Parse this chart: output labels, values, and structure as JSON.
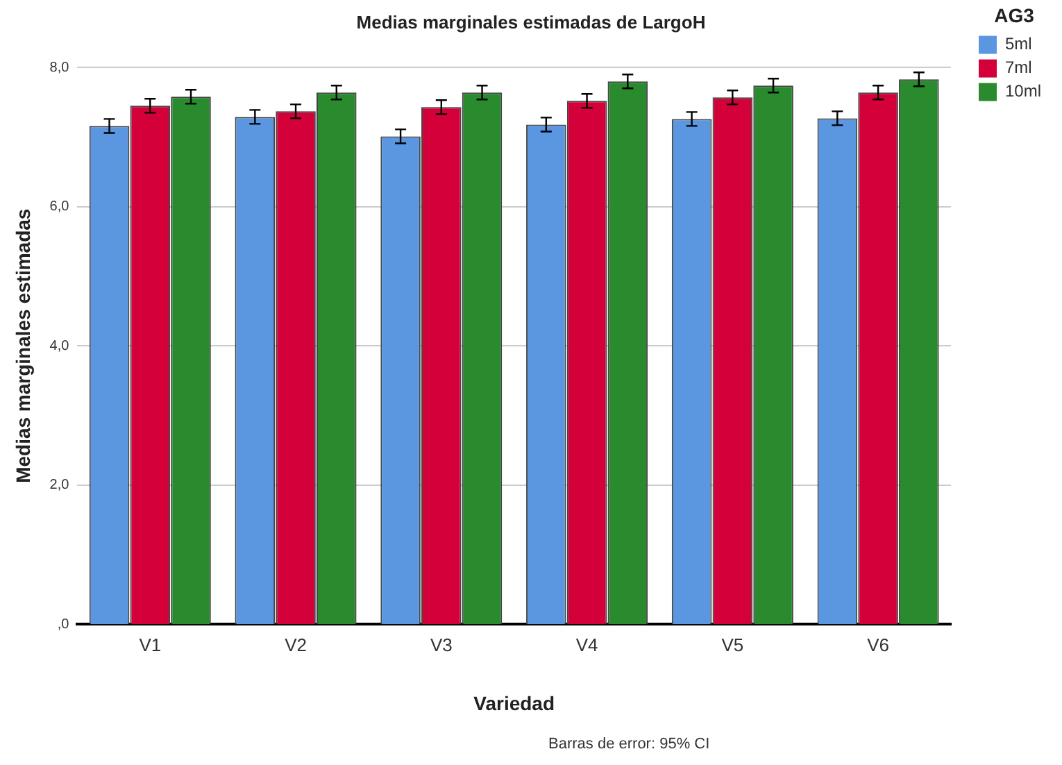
{
  "chart_data": {
    "type": "bar",
    "title": "Medias marginales estimadas de LargoH",
    "xlabel": "Variedad",
    "ylabel": "Medias marginales estimadas",
    "legend_title": "AG3",
    "categories": [
      "V1",
      "V2",
      "V3",
      "V4",
      "V5",
      "V6"
    ],
    "series": [
      {
        "name": "5ml",
        "color": "#5b97e1",
        "values": [
          7.16,
          7.29,
          7.01,
          7.18,
          7.26,
          7.27
        ],
        "errors": [
          0.1,
          0.1,
          0.1,
          0.1,
          0.1,
          0.1
        ]
      },
      {
        "name": "7ml",
        "color": "#d3003a",
        "values": [
          7.45,
          7.37,
          7.43,
          7.52,
          7.57,
          7.64
        ],
        "errors": [
          0.1,
          0.1,
          0.1,
          0.1,
          0.1,
          0.1
        ]
      },
      {
        "name": "10ml",
        "color": "#2a8a2e",
        "values": [
          7.58,
          7.64,
          7.64,
          7.8,
          7.74,
          7.83
        ],
        "errors": [
          0.1,
          0.1,
          0.1,
          0.1,
          0.1,
          0.1
        ]
      }
    ],
    "ylim": [
      0,
      8
    ],
    "yticks": [
      {
        "value": 0,
        "label": ",0"
      },
      {
        "value": 2,
        "label": "2,0"
      },
      {
        "value": 4,
        "label": "4,0"
      },
      {
        "value": 6,
        "label": "6,0"
      },
      {
        "value": 8,
        "label": "8,0"
      }
    ],
    "grid": "y",
    "legend": "top right",
    "annotations": [
      "Barras de error: 95% CI"
    ]
  }
}
